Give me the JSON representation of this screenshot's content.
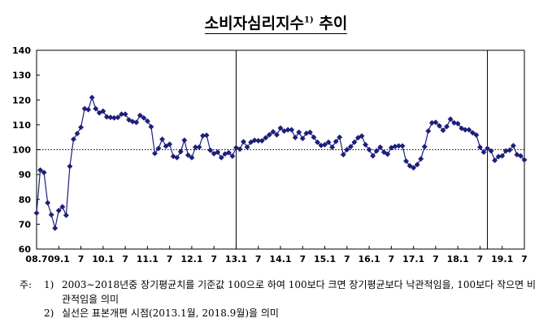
{
  "title": {
    "main": "소비자심리지수",
    "superscript": "1)",
    "suffix": " 추이"
  },
  "notes": [
    {
      "lead": "주:",
      "num": "1)",
      "text": "2003∼2018년중 장기평균치를 기준값 100으로 하여 100보다 크면 장기평균보다 낙관적임을, 100보다 작으면 비관적임을 의미"
    },
    {
      "lead": "",
      "num": "2)",
      "text": "실선은 표본개편 시점(2013.1월, 2018.9월)을 의미"
    }
  ],
  "colors": {
    "series": "#1c1f7a",
    "axis": "#000000",
    "reference_line": "#000000"
  },
  "chart_data": {
    "type": "line",
    "title": "소비자심리지수 추이",
    "ylim": [
      60,
      140
    ],
    "yticks": [
      60,
      70,
      80,
      90,
      100,
      110,
      120,
      130,
      140
    ],
    "xlim": [
      "2008.07",
      "2019.07"
    ],
    "xticks": [
      {
        "x": "2008.07",
        "label": "08.7"
      },
      {
        "x": "2009.01",
        "label": "09.1"
      },
      {
        "x": "2009.07",
        "label": "7"
      },
      {
        "x": "2010.01",
        "label": "10.1"
      },
      {
        "x": "2010.07",
        "label": "7"
      },
      {
        "x": "2011.01",
        "label": "11.1"
      },
      {
        "x": "2011.07",
        "label": "7"
      },
      {
        "x": "2012.01",
        "label": "12.1"
      },
      {
        "x": "2012.07",
        "label": "7"
      },
      {
        "x": "2013.01",
        "label": "13.1"
      },
      {
        "x": "2013.07",
        "label": "7"
      },
      {
        "x": "2014.01",
        "label": "14.1"
      },
      {
        "x": "2014.07",
        "label": "7"
      },
      {
        "x": "2015.01",
        "label": "15.1"
      },
      {
        "x": "2015.07",
        "label": "7"
      },
      {
        "x": "2016.01",
        "label": "16.1"
      },
      {
        "x": "2016.07",
        "label": "7"
      },
      {
        "x": "2017.01",
        "label": "17.1"
      },
      {
        "x": "2017.07",
        "label": "7"
      },
      {
        "x": "2018.01",
        "label": "18.1"
      },
      {
        "x": "2018.07",
        "label": "7"
      },
      {
        "x": "2019.01",
        "label": "19.1"
      },
      {
        "x": "2019.07",
        "label": "7"
      }
    ],
    "reference_line": {
      "y": 100,
      "style": "dotted"
    },
    "vertical_lines": [
      "2013.01",
      "2018.09"
    ],
    "marker": "diamond",
    "grid": false,
    "series": [
      {
        "x": [
          "2008.07",
          "2008.08",
          "2008.09",
          "2008.10",
          "2008.11",
          "2008.12",
          "2009.01",
          "2009.02",
          "2009.03",
          "2009.04",
          "2009.05",
          "2009.06",
          "2009.07",
          "2009.08",
          "2009.09",
          "2009.10",
          "2009.11",
          "2009.12",
          "2010.01",
          "2010.02",
          "2010.03",
          "2010.04",
          "2010.05",
          "2010.06",
          "2010.07",
          "2010.08",
          "2010.09",
          "2010.10",
          "2010.11",
          "2010.12",
          "2011.01",
          "2011.02",
          "2011.03",
          "2011.04",
          "2011.05",
          "2011.06",
          "2011.07",
          "2011.08",
          "2011.09",
          "2011.10",
          "2011.11",
          "2011.12",
          "2012.01",
          "2012.02",
          "2012.03",
          "2012.04",
          "2012.05",
          "2012.06",
          "2012.07",
          "2012.08",
          "2012.09",
          "2012.10",
          "2012.11",
          "2012.12",
          "2013.01",
          "2013.02",
          "2013.03",
          "2013.04",
          "2013.05",
          "2013.06",
          "2013.07",
          "2013.08",
          "2013.09",
          "2013.10",
          "2013.11",
          "2013.12",
          "2014.01",
          "2014.02",
          "2014.03",
          "2014.04",
          "2014.05",
          "2014.06",
          "2014.07",
          "2014.08",
          "2014.09",
          "2014.10",
          "2014.11",
          "2014.12",
          "2015.01",
          "2015.02",
          "2015.03",
          "2015.04",
          "2015.05",
          "2015.06",
          "2015.07",
          "2015.08",
          "2015.09",
          "2015.10",
          "2015.11",
          "2015.12",
          "2016.01",
          "2016.02",
          "2016.03",
          "2016.04",
          "2016.05",
          "2016.06",
          "2016.07",
          "2016.08",
          "2016.09",
          "2016.10",
          "2016.11",
          "2016.12",
          "2017.01",
          "2017.02",
          "2017.03",
          "2017.04",
          "2017.05",
          "2017.06",
          "2017.07",
          "2017.08",
          "2017.09",
          "2017.10",
          "2017.11",
          "2017.12",
          "2018.01",
          "2018.02",
          "2018.03",
          "2018.04",
          "2018.05",
          "2018.06",
          "2018.07",
          "2018.08",
          "2018.09",
          "2018.10",
          "2018.11",
          "2018.12",
          "2019.01",
          "2019.02",
          "2019.03",
          "2019.04",
          "2019.05",
          "2019.06",
          "2019.07"
        ],
        "values": [
          74.5,
          91.8,
          90.8,
          78.6,
          73.8,
          68.4,
          75.5,
          77.0,
          73.6,
          93.3,
          104.2,
          106.5,
          109.0,
          116.5,
          116.1,
          121.0,
          116.5,
          114.8,
          115.5,
          113.2,
          113.0,
          112.8,
          113.0,
          114.3,
          114.3,
          112.0,
          111.3,
          111.0,
          113.8,
          112.8,
          111.5,
          109.2,
          98.5,
          100.5,
          104.2,
          101.4,
          102.2,
          97.3,
          96.8,
          99.2,
          103.8,
          97.8,
          96.8,
          101.0,
          101.0,
          105.6,
          105.8,
          99.8,
          98.4,
          99.0,
          96.8,
          98.3,
          98.8,
          97.4,
          100.8,
          100.2,
          103.2,
          101.0,
          103.0,
          103.8,
          103.6,
          103.6,
          104.8,
          106.0,
          107.2,
          106.0,
          108.7,
          107.5,
          108.0,
          108.0,
          104.9,
          107.0,
          104.5,
          106.6,
          107.0,
          105.0,
          103.0,
          101.7,
          102.0,
          103.0,
          101.0,
          103.3,
          105.0,
          98.0,
          100.0,
          101.2,
          103.0,
          104.8,
          105.5,
          102.0,
          100.0,
          97.5,
          99.5,
          101.0,
          99.0,
          98.2,
          100.8,
          101.3,
          101.5,
          101.5,
          95.4,
          93.5,
          92.7,
          94.0,
          96.3,
          101.2,
          107.5,
          110.8,
          111.0,
          109.6,
          107.8,
          109.3,
          112.3,
          110.8,
          110.5,
          108.6,
          108.0,
          108.0,
          106.8,
          105.9,
          101.0,
          99.0,
          100.5,
          99.5,
          95.7,
          97.2,
          97.5,
          99.5,
          99.8,
          101.6,
          98.0,
          97.5,
          95.9
        ]
      }
    ]
  }
}
